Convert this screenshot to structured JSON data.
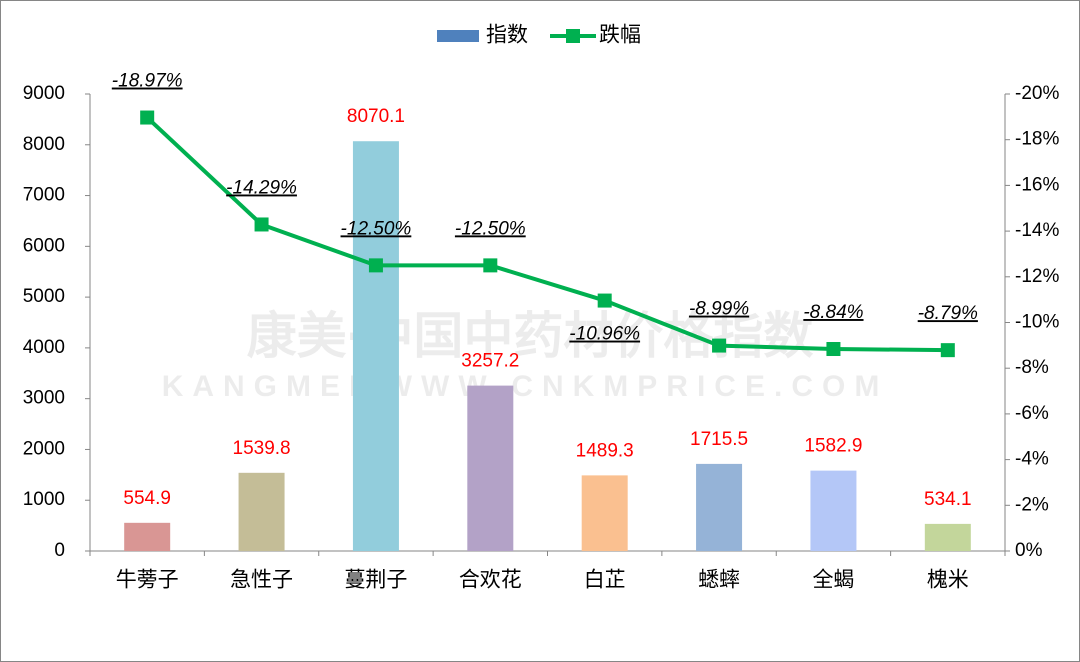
{
  "chart_data": {
    "type": "combo",
    "categories": [
      "牛蒡子",
      "急性子",
      "蔓荆子",
      "合欢花",
      "白芷",
      "蟋蟀",
      "全蝎",
      "槐米"
    ],
    "series": [
      {
        "name": "指数",
        "type": "bar",
        "color": "#4f81bd",
        "colors": [
          "#d99694",
          "#c4bd97",
          "#92cddc",
          "#b3a2c7",
          "#fac090",
          "#95b3d7",
          "#b4c7f7",
          "#c3d69b"
        ],
        "values": [
          554.9,
          1539.8,
          8070.1,
          3257.2,
          1489.3,
          1715.5,
          1582.9,
          534.1
        ]
      },
      {
        "name": "跌幅",
        "type": "line",
        "axis": "y2",
        "color": "#00b050",
        "values": [
          -18.97,
          -14.29,
          -12.5,
          -12.5,
          -10.96,
          -8.99,
          -8.84,
          -8.79
        ],
        "value_labels": [
          "-18.97%",
          "-14.29%",
          "-12.50%",
          "-12.50%",
          "-10.96%",
          "-8.99%",
          "-8.84%",
          "-8.79%"
        ]
      }
    ],
    "ylim": [
      0,
      9000
    ],
    "yticks": [
      0,
      1000,
      2000,
      3000,
      4000,
      5000,
      6000,
      7000,
      8000,
      9000
    ],
    "y2lim": [
      0,
      -20
    ],
    "y2ticks": [
      {
        "value": 0,
        "label": "0%"
      },
      {
        "value": -2,
        "label": "-2%"
      },
      {
        "value": -4,
        "label": "-4%"
      },
      {
        "value": -6,
        "label": "-6%"
      },
      {
        "value": -8,
        "label": "-8%"
      },
      {
        "value": -10,
        "label": "-10%"
      },
      {
        "value": -12,
        "label": "-12%"
      },
      {
        "value": -14,
        "label": "-14%"
      },
      {
        "value": -16,
        "label": "-16%"
      },
      {
        "value": -18,
        "label": "-18%"
      },
      {
        "value": -20,
        "label": "-20%"
      }
    ],
    "grid": false,
    "legend": "top",
    "watermark": [
      "康美·中国中药材价格指数",
      "KANGMEI WWW.CNKMPRICE.COM"
    ]
  }
}
